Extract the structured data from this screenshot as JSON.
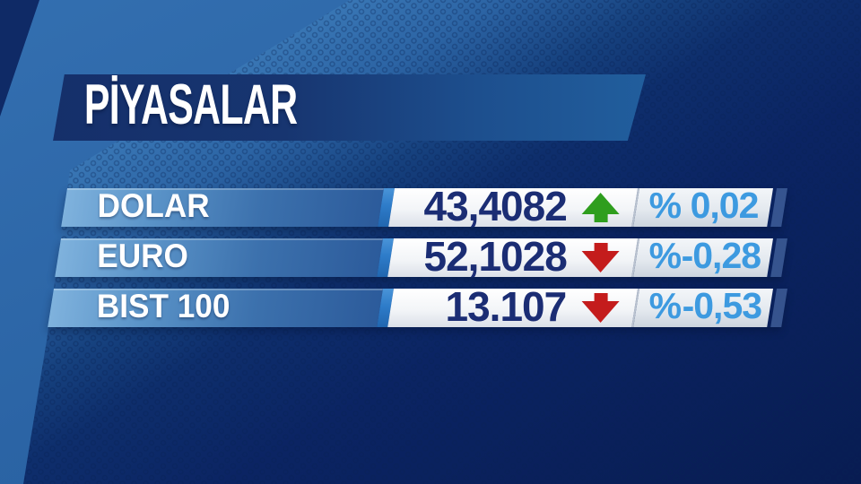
{
  "banner": {
    "title": "PİYASALAR"
  },
  "rows": [
    {
      "label": "DOLAR",
      "value": "43,4082",
      "direction": "up",
      "percent_symbol": "%",
      "percent": "0,02"
    },
    {
      "label": "EURO",
      "value": "52,1028",
      "direction": "down",
      "percent_symbol": "%",
      "percent": "-0,28"
    },
    {
      "label": "BIST 100",
      "value": "13.107",
      "direction": "down",
      "percent_symbol": "%",
      "percent": "-0,53"
    }
  ],
  "colors": {
    "arrow_up": "#2f9e1e",
    "arrow_down": "#c41c1c",
    "percent_text": "#3d9ae0",
    "value_text": "#1b2d74",
    "banner_text": "#ffffff"
  },
  "chart_data": {
    "type": "table",
    "title": "PİYASALAR",
    "columns": [
      "instrument",
      "value",
      "direction",
      "percent_change"
    ],
    "rows": [
      [
        "DOLAR",
        "43,4082",
        "up",
        "0,02"
      ],
      [
        "EURO",
        "52,1028",
        "down",
        "-0,28"
      ],
      [
        "BIST 100",
        "13.107",
        "down",
        "-0,53"
      ]
    ],
    "values_numeric": {
      "DOLAR": 43.4082,
      "EURO": 52.1028,
      "BIST 100": 13107
    },
    "percent_change_numeric": {
      "DOLAR": 0.02,
      "EURO": -0.28,
      "BIST 100": -0.53
    }
  }
}
